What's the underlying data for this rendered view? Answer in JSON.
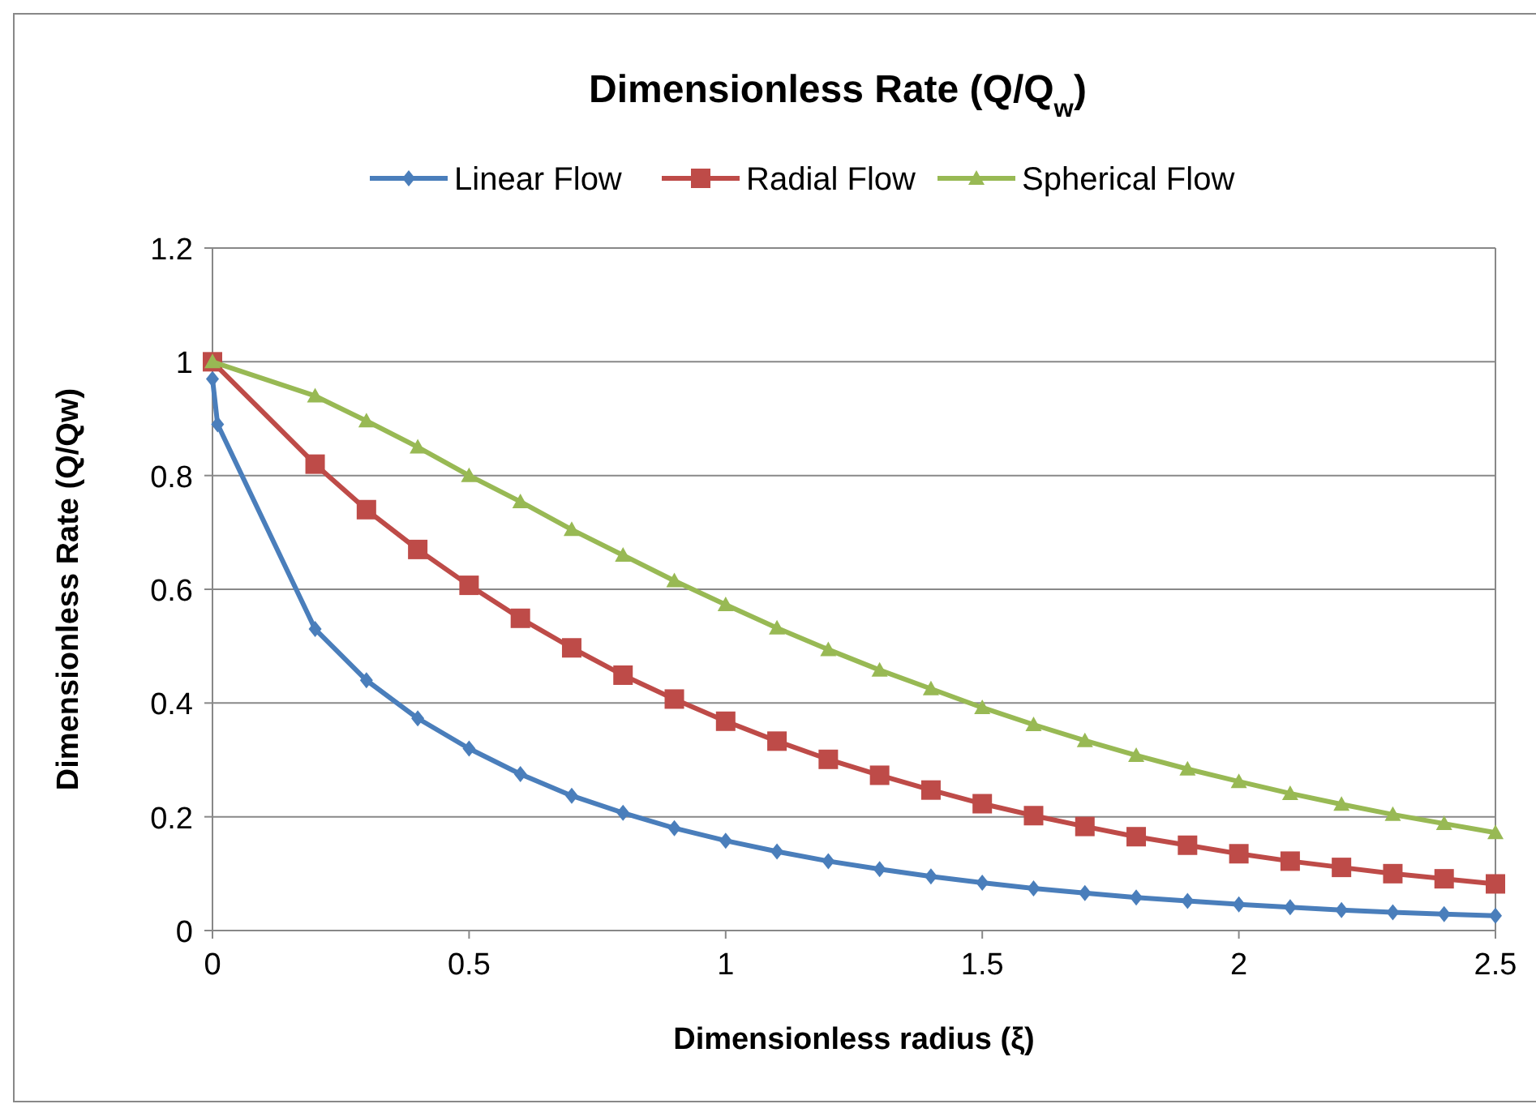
{
  "chart_data": {
    "type": "line",
    "title": "Dimensionless Rate (Q/Q$_{w}$)",
    "xlabel": "Dimensionless radius (ξ)",
    "ylabel": "Dimensionless Rate (Q/Qw)",
    "xlim": [
      0,
      2.5
    ],
    "xticks": [
      0,
      0.5,
      1,
      1.5,
      2,
      2.5
    ],
    "ylim": [
      0,
      1.2
    ],
    "yticks": [
      0,
      0.2,
      0.4,
      0.6,
      0.8,
      1,
      1.2
    ],
    "grid": "y",
    "legend": "top",
    "series": [
      {
        "name": "Linear Flow",
        "color": "#4a7ebb",
        "marker": "diamond",
        "x": [
          0,
          0.01,
          0.2,
          0.3,
          0.4,
          0.5,
          0.6,
          0.7,
          0.8,
          0.9,
          1,
          1.1,
          1.2,
          1.3,
          1.4,
          1.5,
          1.6,
          1.7,
          1.8,
          1.9,
          2,
          2.1,
          2.2,
          2.3,
          2.4,
          2.5
        ],
        "values": [
          0.97,
          0.89,
          0.53,
          0.44,
          0.373,
          0.32,
          0.275,
          0.237,
          0.207,
          0.18,
          0.158,
          0.139,
          0.122,
          0.108,
          0.095,
          0.084,
          0.074,
          0.066,
          0.058,
          0.052,
          0.046,
          0.041,
          0.036,
          0.032,
          0.029,
          0.026
        ]
      },
      {
        "name": "Radial Flow",
        "color": "#be4b48",
        "marker": "square",
        "x": [
          0,
          0.2,
          0.3,
          0.4,
          0.5,
          0.6,
          0.7,
          0.8,
          0.9,
          1,
          1.1,
          1.2,
          1.3,
          1.4,
          1.5,
          1.6,
          1.7,
          1.8,
          1.9,
          2,
          2.1,
          2.2,
          2.3,
          2.4,
          2.5
        ],
        "values": [
          1,
          0.82,
          0.74,
          0.67,
          0.607,
          0.549,
          0.497,
          0.449,
          0.407,
          0.368,
          0.333,
          0.301,
          0.273,
          0.247,
          0.223,
          0.202,
          0.183,
          0.165,
          0.15,
          0.135,
          0.122,
          0.111,
          0.1,
          0.091,
          0.082
        ]
      },
      {
        "name": "Spherical Flow",
        "color": "#98b954",
        "marker": "triangle",
        "x": [
          0,
          0.2,
          0.3,
          0.4,
          0.5,
          0.6,
          0.7,
          0.8,
          0.9,
          1,
          1.1,
          1.2,
          1.3,
          1.4,
          1.5,
          1.6,
          1.7,
          1.8,
          1.9,
          2,
          2.1,
          2.2,
          2.3,
          2.4,
          2.5
        ],
        "values": [
          1,
          0.94,
          0.896,
          0.85,
          0.8,
          0.754,
          0.705,
          0.66,
          0.615,
          0.573,
          0.532,
          0.494,
          0.458,
          0.425,
          0.392,
          0.362,
          0.334,
          0.308,
          0.284,
          0.262,
          0.241,
          0.222,
          0.204,
          0.188,
          0.172
        ]
      }
    ]
  }
}
